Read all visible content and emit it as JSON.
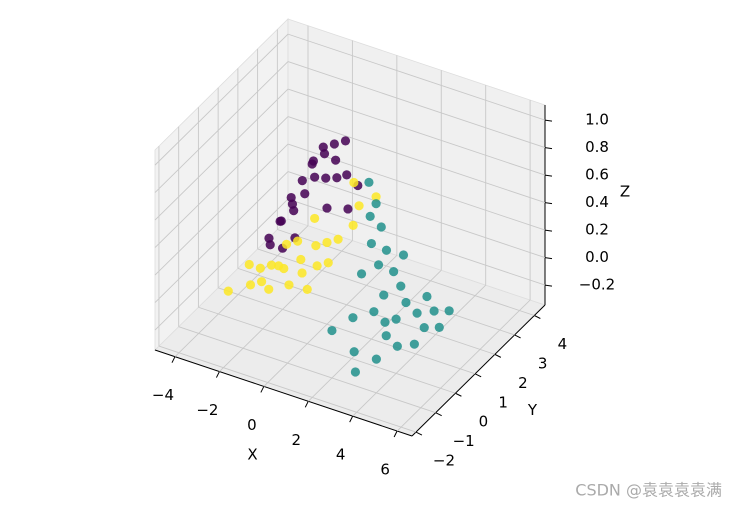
{
  "chart_data": {
    "type": "scatter3d",
    "xlabel": "X",
    "ylabel": "Y",
    "zlabel": "Z",
    "xlim": [
      -4.9,
      6.67
    ],
    "ylim": [
      -2.2,
      4.54
    ],
    "zlim": [
      -0.345,
      1.11
    ],
    "xticks": [
      {
        "value": -4,
        "label": "−4"
      },
      {
        "value": -2,
        "label": "−2"
      },
      0,
      2,
      4,
      6
    ],
    "yticks": [
      {
        "value": -2,
        "label": "−2"
      },
      {
        "value": -1,
        "label": "−1"
      },
      0,
      1,
      2,
      3,
      4
    ],
    "zticks": [
      {
        "value": -0.2,
        "label": "−0.2"
      },
      {
        "value": 0,
        "label": "0.0"
      },
      0.2,
      0.4,
      0.6,
      0.8,
      {
        "value": 1,
        "label": "1.0"
      }
    ],
    "grid": true,
    "series": [
      {
        "color": "#440154",
        "x": [
          -1,
          -0.5,
          -1.5,
          0,
          -2,
          -1,
          -0.5,
          -2.5,
          -3,
          -2,
          -1.5,
          -1,
          0.5,
          0.5,
          -2.5,
          -3,
          -2,
          -1,
          0,
          -1.5,
          -0.5,
          -3.5,
          -2,
          0,
          -1
        ],
        "y": [
          2,
          2,
          2,
          2,
          2,
          1.5,
          1.5,
          2,
          2,
          1.5,
          1,
          1,
          2,
          1.5,
          1.5,
          1.5,
          1,
          0.5,
          1,
          2.5,
          2.5,
          2,
          2.5,
          1.5,
          2.5
        ],
        "z": [
          0.7,
          0.68,
          0.62,
          0.6,
          0.45,
          0.6,
          0.62,
          0.3,
          0.1,
          0.35,
          0.4,
          0.55,
          0.55,
          0.45,
          0.2,
          0,
          0.1,
          0.3,
          0.5,
          0.65,
          0.75,
          -0.05,
          0.5,
          0.65,
          0.7
        ]
      },
      {
        "color": "#fde725",
        "x": [
          -4,
          -3,
          -2.5,
          -2,
          -1.5,
          -2,
          -1,
          -0.5,
          0,
          -3,
          -2.5,
          -1,
          0,
          0.5,
          1,
          1,
          0.5,
          -1.5,
          -0.5,
          -3.5,
          1.5,
          0,
          -2,
          0.5,
          -1
        ],
        "y": [
          0.5,
          1,
          1,
          0.8,
          0.5,
          0.3,
          0.8,
          1,
          1,
          0.5,
          0.5,
          0.2,
          0.5,
          1,
          1.2,
          1.5,
          0.5,
          1.2,
          0.3,
          1,
          1.8,
          0,
          1.2,
          1.8,
          1.5
        ],
        "z": [
          -0.25,
          -0.1,
          -0.05,
          0,
          0.05,
          -0.1,
          0.1,
          0.2,
          0.25,
          -0.15,
          -0.1,
          0,
          0.15,
          0.3,
          0.4,
          0.5,
          0.2,
          0.15,
          0.1,
          -0.1,
          0.55,
          0.05,
          0.1,
          0.6,
          0.3
        ]
      },
      {
        "color": "#21918c",
        "x": [
          1,
          1.5,
          2,
          2.5,
          3,
          3.5,
          4,
          4.5,
          5,
          5.5,
          2,
          3,
          3.5,
          4,
          4.5,
          2.5,
          3,
          4,
          5,
          3.5,
          2,
          1.5,
          3,
          4.5,
          5.5,
          2,
          4,
          5,
          2.5,
          3
        ],
        "y": [
          2,
          1.8,
          1.5,
          1.2,
          1,
          0.8,
          0.5,
          0.5,
          0.3,
          0.5,
          0.5,
          0,
          0,
          -0.5,
          -0.5,
          -0.5,
          -1,
          0,
          -0.2,
          -1.5,
          1,
          1.5,
          0.5,
          1,
          1,
          -1,
          -1,
          0.8,
          0.8,
          1.5
        ],
        "z": [
          0.6,
          0.5,
          0.4,
          0.3,
          0.2,
          0.15,
          0.1,
          0.05,
          0,
          0,
          0.2,
          0.05,
          0,
          0,
          -0.05,
          0.05,
          -0.1,
          0.05,
          -0.05,
          -0.15,
          0.35,
          0.45,
          0.1,
          0.1,
          0.05,
          0,
          -0.1,
          0.05,
          0.25,
          0.25
        ]
      }
    ]
  },
  "watermark": "CSDN @袁袁袁袁满"
}
